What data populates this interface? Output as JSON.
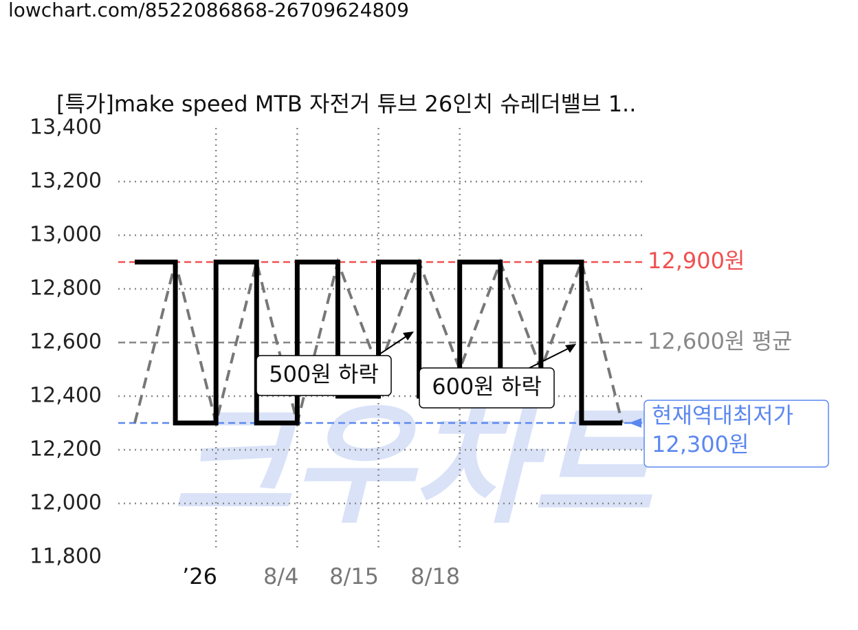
{
  "header": {
    "url": "lowchart.com/8522086868-26709624809"
  },
  "chart_data": {
    "type": "step",
    "title": "[특가]make speed MTB 자전거 튜브 26인치 슈레더밸브 1..",
    "watermark": "크우차트",
    "x": [
      0,
      1,
      2,
      3,
      4,
      5,
      6,
      7,
      8,
      9,
      10,
      11,
      12
    ],
    "xlim": [
      0,
      12
    ],
    "xticks": [
      {
        "value": 1.6,
        "label": "’26"
      },
      {
        "value": 3.6,
        "label": "8/4"
      },
      {
        "value": 5.4,
        "label": "8/15"
      },
      {
        "value": 7.4,
        "label": "8/18"
      }
    ],
    "xgrid": [
      2,
      4,
      6,
      8
    ],
    "series": [
      {
        "color": "#000000",
        "values": [
          12900,
          12300,
          12900,
          12300,
          12900,
          12400,
          12900,
          12400,
          12900,
          12400,
          12900,
          12300,
          12300
        ]
      },
      {
        "color": "#777777",
        "dashed": true,
        "values": [
          12300,
          12900,
          12300,
          12900,
          12300,
          12900,
          12500,
          12900,
          12500,
          12900,
          12500,
          12900,
          12300
        ]
      }
    ],
    "ylim": [
      11800,
      13400
    ],
    "yticks": [
      {
        "value": 11800,
        "label": "11,800"
      },
      {
        "value": 12000,
        "label": "12,000"
      },
      {
        "value": 12200,
        "label": "12,200"
      },
      {
        "value": 12400,
        "label": "12,400"
      },
      {
        "value": 12600,
        "label": "12,600"
      },
      {
        "value": 12800,
        "label": "12,800"
      },
      {
        "value": 13000,
        "label": "13,000"
      },
      {
        "value": 13200,
        "label": "13,200"
      },
      {
        "value": 13400,
        "label": "13,400"
      }
    ],
    "grid": true,
    "reference_lines": [
      {
        "value": 12900,
        "label": "12,900원",
        "color": "#f05050"
      },
      {
        "value": 12600,
        "label": "12,600원 평균",
        "color": "#888888"
      },
      {
        "value": 12300,
        "note": "현재역대최저가",
        "label": "12,300원",
        "color": "#5b87f0"
      }
    ],
    "annotations": [
      {
        "text": "500원 하락"
      },
      {
        "text": "600원 하락"
      }
    ]
  }
}
